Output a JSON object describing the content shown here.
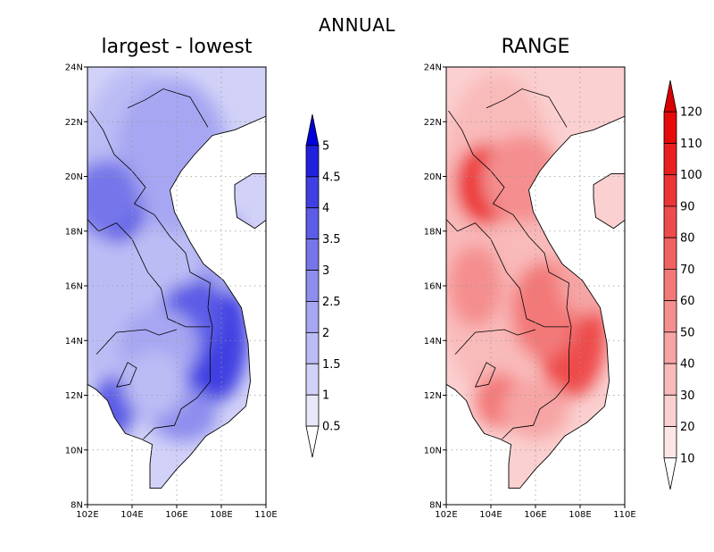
{
  "main_title": "ANNUAL",
  "panels": [
    {
      "title": "largest - lowest",
      "colorbar_labels": [
        "0.5",
        "1",
        "1.5",
        "2",
        "2.5",
        "3",
        "3.5",
        "4",
        "4.5",
        "5"
      ],
      "colors": [
        "#ffffff",
        "#e8e8fb",
        "#d2d2f8",
        "#bcbcf5",
        "#a6a6f2",
        "#8e8eee",
        "#7676ea",
        "#5c5ce6",
        "#4040e2",
        "#2020de",
        "#0000d8"
      ]
    },
    {
      "title": "RANGE",
      "colorbar_labels": [
        "10",
        "20",
        "30",
        "40",
        "50",
        "60",
        "70",
        "80",
        "90",
        "100",
        "110",
        "120"
      ],
      "colors": [
        "#ffffff",
        "#fde6e6",
        "#fbd0d0",
        "#f9baba",
        "#f7a4a4",
        "#f58e8e",
        "#f37878",
        "#f16262",
        "#ee4c4c",
        "#ec3636",
        "#ea2020",
        "#e60a0a",
        "#d80000"
      ]
    }
  ],
  "axes": {
    "lat_labels": [
      "24N",
      "22N",
      "20N",
      "18N",
      "16N",
      "14N",
      "12N",
      "10N",
      "8N"
    ],
    "lon_labels": [
      "102E",
      "104E",
      "106E",
      "108E",
      "110E"
    ]
  },
  "chart_data": {
    "type": "heatmap",
    "title": "ANNUAL",
    "xlim": [
      102,
      110
    ],
    "ylim": [
      8,
      24
    ],
    "fields": [
      {
        "name": "largest - lowest",
        "levels": [
          0.5,
          1,
          1.5,
          2,
          2.5,
          3,
          3.5,
          4,
          4.5,
          5
        ],
        "max_areas": [
          "18.7N 103.3E",
          "14.5N 108E",
          "11.5N 103E"
        ]
      },
      {
        "name": "RANGE",
        "levels": [
          10,
          20,
          30,
          40,
          50,
          60,
          70,
          80,
          90,
          100,
          110,
          120
        ],
        "max_areas": [
          "19.7N 103.6E",
          "14.3N 108E"
        ]
      }
    ]
  }
}
